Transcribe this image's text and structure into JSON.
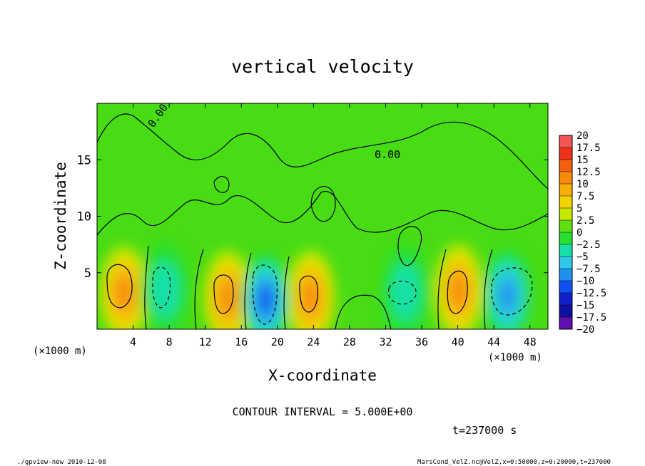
{
  "chart_data": {
    "type": "heatmap",
    "title": "vertical velocity",
    "xlabel": "X-coordinate",
    "ylabel": "Z-coordinate",
    "x_unit_left": "(×1000 m)",
    "x_unit_right": "(×1000 m)",
    "x_ticks": [
      4,
      8,
      12,
      16,
      20,
      24,
      28,
      32,
      36,
      40,
      44,
      48
    ],
    "y_ticks": [
      5,
      10,
      15
    ],
    "xlim": [
      0,
      50
    ],
    "ylim": [
      0,
      20
    ],
    "colorbar": {
      "labels": [
        "20",
        "17.5",
        "15",
        "12.5",
        "10",
        "7.5",
        "5",
        "2.5",
        "0",
        "−2.5",
        "−5",
        "−7.5",
        "−10",
        "−12.5",
        "−15",
        "−17.5",
        "−20"
      ],
      "colors": [
        "#f08aa0",
        "#f25555",
        "#f03018",
        "#f46010",
        "#f88c08",
        "#f8b008",
        "#f0d400",
        "#c8e800",
        "#60e010",
        "#28e030",
        "#18e0a8",
        "#30c8e8",
        "#2090f0",
        "#1050f0",
        "#1020c8",
        "#1010a0",
        "#6010b0"
      ]
    },
    "cells": [
      {
        "x": 3,
        "z": 3.2,
        "w": 10
      },
      {
        "x": 14.5,
        "z": 2.8,
        "w": 10
      },
      {
        "x": 23.7,
        "z": 2.8,
        "w": 10
      },
      {
        "x": 40.1,
        "z": 3.4,
        "w": 10
      },
      {
        "x": 7.5,
        "z": 3.5,
        "w": -6
      },
      {
        "x": 18.7,
        "z": 2.6,
        "w": -12
      },
      {
        "x": 34.2,
        "z": 3.3,
        "w": -4
      },
      {
        "x": 45.5,
        "z": 3.0,
        "w": -9
      }
    ],
    "contour_label": "0.00",
    "contour_interval": "CONTOUR INTERVAL = 5.000E+00",
    "time_label": "t=237000 s"
  },
  "footer": {
    "left": "./gpview-new  2010-12-08",
    "right": "MarsCond_VelZ.nc@VelZ,x=0:50000,z=0:20000,t=237000"
  },
  "colors": {
    "background_field": "#48dc14",
    "grid_line": "#000000"
  }
}
